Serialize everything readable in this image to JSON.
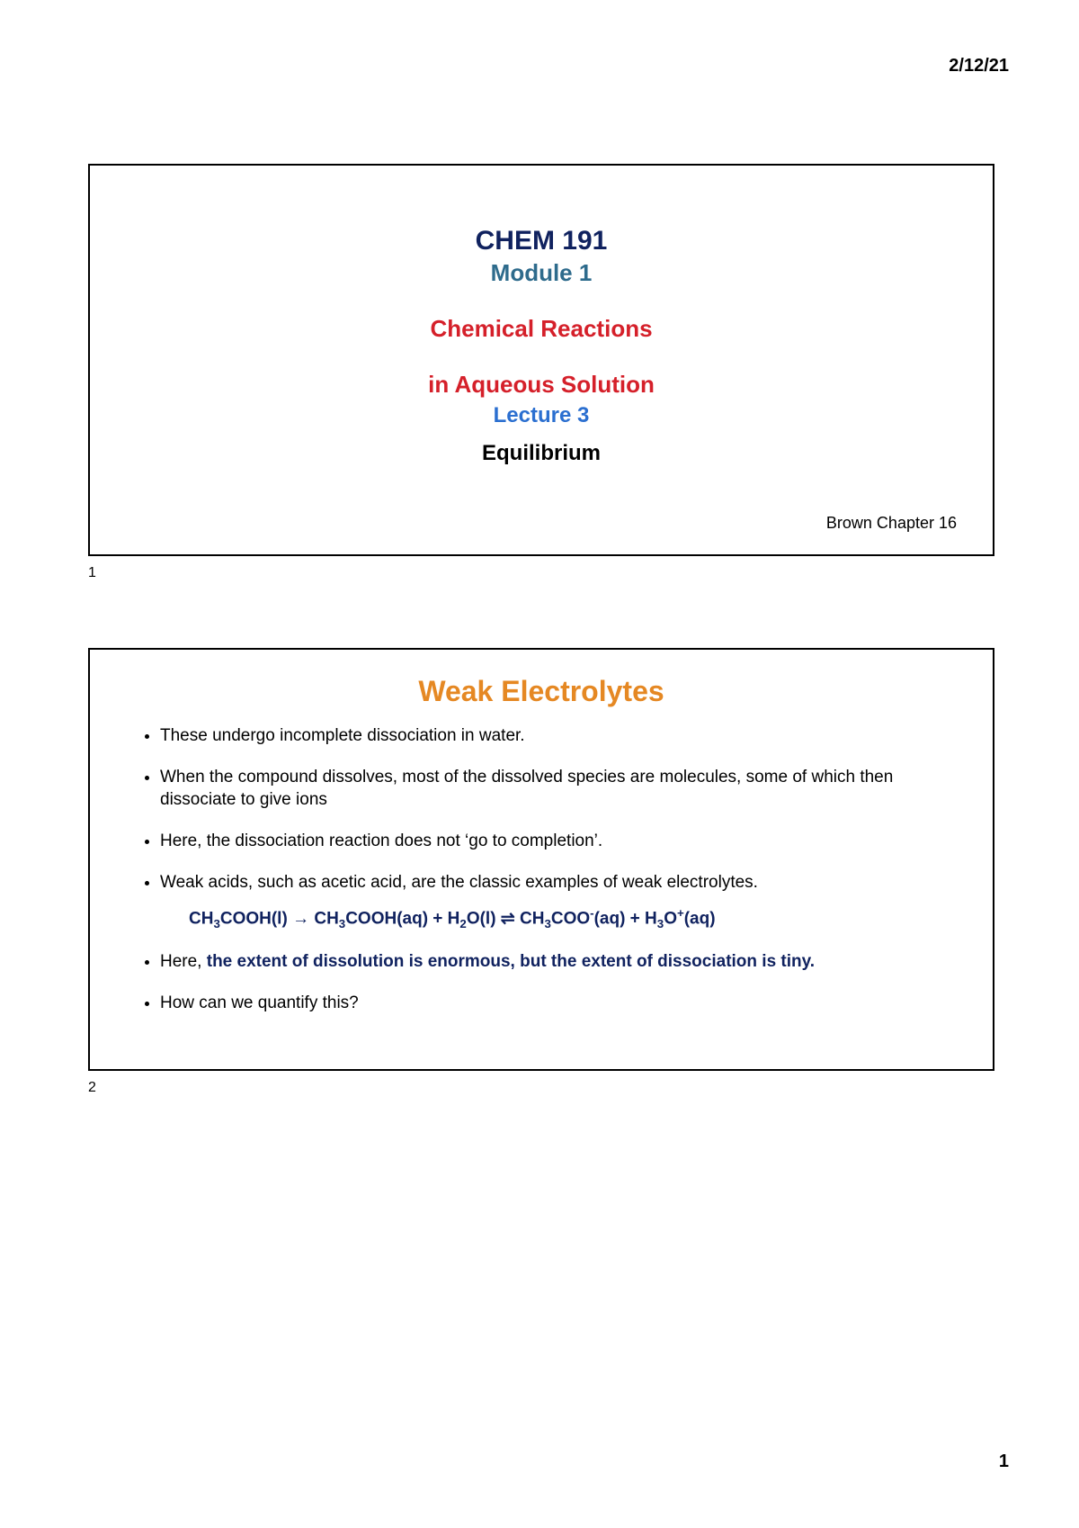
{
  "colors": {
    "dark_blue": "#10225f",
    "teal_blue": "#2e6b8c",
    "red": "#d5202a",
    "bright_blue": "#2b6fd0",
    "orange": "#e58823",
    "eq_blue": "#10225f",
    "text_black": "#000000"
  },
  "header": {
    "date": "2/12/21"
  },
  "footer": {
    "page_number": "1"
  },
  "slide1": {
    "index": "1",
    "course_code": "CHEM 191",
    "module": "Module 1",
    "topic_line1": "Chemical Reactions",
    "topic_line2": "in Aqueous Solution",
    "lecture": "Lecture 3",
    "subtitle": "Equilibrium",
    "reference": "Brown Chapter 16"
  },
  "slide2": {
    "index": "2",
    "title": "Weak Electrolytes",
    "bullets": {
      "b1": "These undergo incomplete dissociation in water.",
      "b2": "When the compound dissolves, most of the dissolved species are molecules, some of which then dissociate to give ions",
      "b3": "Here, the dissociation reaction does not ‘go to completion’.",
      "b4": "Weak acids, such as acetic acid, are the classic examples of weak electrolytes.",
      "b5_prefix": "Here, ",
      "b5_bold": "the extent of dissolution is enormous, but the extent of dissociation is tiny.",
      "b6": "How can we quantify this?"
    },
    "equation": {
      "part1": "CH",
      "sub3a": "3",
      "part2": "COOH(l)  →  CH",
      "sub3b": "3",
      "part3": "COOH(aq)  +  H",
      "sub2a": "2",
      "part4": "O(l) ⇌ CH",
      "sub3c": "3",
      "part5": "COO",
      "supminus": "-",
      "part6": "(aq)  +  H",
      "sub3d": "3",
      "part7": "O",
      "supplus": "+",
      "part8": "(aq)"
    }
  }
}
